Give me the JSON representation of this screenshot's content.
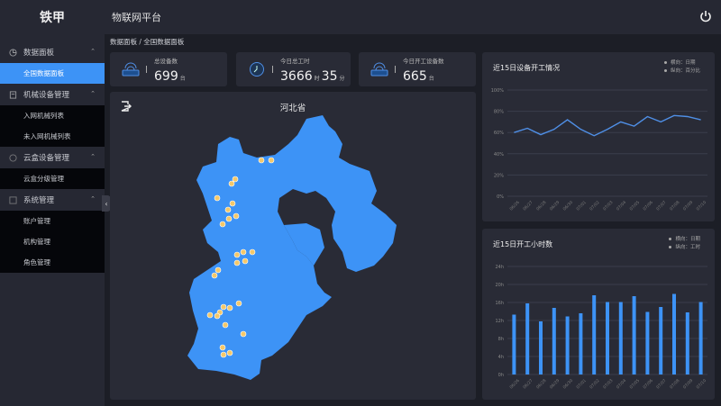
{
  "header": {
    "logo": "铁甲",
    "title": "物联网平台",
    "power_icon": "power-icon"
  },
  "sidebar": {
    "groups": [
      {
        "label": "数据面板",
        "icon": "dashboard-icon",
        "items": [
          {
            "label": "全国数据面板",
            "active": true
          }
        ]
      },
      {
        "label": "机械设备管理",
        "icon": "machine-icon",
        "items": [
          {
            "label": "入网机械列表"
          },
          {
            "label": "未入网机械列表"
          }
        ]
      },
      {
        "label": "云盒设备管理",
        "icon": "cloud-box-icon",
        "items": [
          {
            "label": "云盒分级管理"
          }
        ]
      },
      {
        "label": "系统管理",
        "icon": "system-icon",
        "items": [
          {
            "label": "账户管理"
          },
          {
            "label": "机构管理"
          },
          {
            "label": "角色管理"
          }
        ]
      }
    ],
    "collapse_glyph": "‹"
  },
  "breadcrumb": "数据面板 / 全国数据面板",
  "stats": [
    {
      "label": "总设备数",
      "value": "699",
      "unit": "台",
      "icon": "device-icon"
    },
    {
      "label": "今日总工时",
      "value": "3666",
      "unit": "时",
      "value2": "35",
      "unit2": "分",
      "icon": "clock-icon"
    },
    {
      "label": "今日开工设备数",
      "value": "665",
      "unit": "台",
      "icon": "device-icon"
    }
  ],
  "map": {
    "title": "河北省",
    "fill": "#3d93f6",
    "pin_color": "#f4c86a"
  },
  "chart_data": [
    {
      "type": "line",
      "title": "近15日设备开工情况",
      "legend": [
        "横向：日期",
        "纵向：百分比"
      ],
      "categories": [
        "06/26",
        "06/27",
        "06/28",
        "06/29",
        "06/30",
        "07/01",
        "07/02",
        "07/03",
        "07/04",
        "07/05",
        "07/06",
        "07/07",
        "07/08",
        "07/09",
        "07/10"
      ],
      "values": [
        60,
        64,
        58,
        63,
        72,
        63,
        57,
        63,
        70,
        66,
        75,
        70,
        76,
        75,
        72
      ],
      "yticks": [
        "0%",
        "20%",
        "40%",
        "60%",
        "80%",
        "100%"
      ],
      "ylim": [
        0,
        100
      ],
      "color": "#4f8fe6"
    },
    {
      "type": "bar",
      "title": "近15日开工小时数",
      "legend": [
        "横向：日期",
        "纵向：工时"
      ],
      "categories": [
        "06/26",
        "06/27",
        "06/28",
        "06/29",
        "06/30",
        "07/01",
        "07/02",
        "07/03",
        "07/04",
        "07/05",
        "07/06",
        "07/07",
        "07/08",
        "07/09",
        "07/10"
      ],
      "values": [
        13.3,
        15.8,
        11.8,
        14.8,
        12.9,
        13.6,
        17.6,
        16.1,
        16.1,
        17.4,
        13.9,
        15.0,
        17.9,
        13.8,
        16.1
      ],
      "yticks": [
        "0h",
        "4h",
        "8h",
        "12h",
        "16h",
        "20h",
        "24h"
      ],
      "ylim": [
        0,
        24
      ],
      "color": "#3d93f6"
    }
  ]
}
